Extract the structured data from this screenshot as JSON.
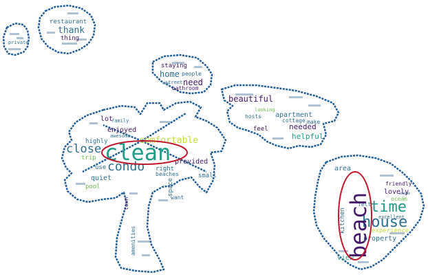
{
  "colors": {
    "outline": "#1f5d99",
    "highlight": "#c0182c",
    "purple": "#45186b",
    "blue": "#2d6f8f",
    "teal": "#1f9d8a",
    "green": "#6cc24a",
    "lime": "#c4d93a"
  },
  "words": {
    "restaurant": "restaurant",
    "thank": "thank",
    "thing": "thing",
    "private": "private",
    "staying": "staying",
    "home": "home",
    "people": "people",
    "need": "need",
    "street": "street",
    "bathroom": "bathroom",
    "beautiful": "beautiful",
    "looking": "looking",
    "hosts": "hosts",
    "apartment": "apartment",
    "cottage": "cottage",
    "make": "make",
    "feel": "feel",
    "needed": "needed",
    "helpful": "helpful",
    "lot": "lot",
    "family": "family",
    "highly": "highly",
    "enjoyed": "enjoyed",
    "awesome": "awesome",
    "comfortable": "comfortable",
    "close": "close",
    "clean": "clean",
    "trip": "trip",
    "condo": "condo",
    "provided": "provided",
    "use": "use",
    "right": "right",
    "quiet": "quiet",
    "beaches": "beaches",
    "small": "small",
    "pool": "pool",
    "space": "space",
    "want": "want",
    "town": "town",
    "amenities": "amenities",
    "area": "area",
    "friendly": "friendly",
    "lovely": "lovely",
    "time": "time",
    "ocean": "ocean",
    "felt": "felt",
    "house": "house",
    "excellent": "excellent",
    "kitchen": "kitchen",
    "beach": "beach",
    "experience": "experience",
    "property": "property",
    "view": "view"
  }
}
